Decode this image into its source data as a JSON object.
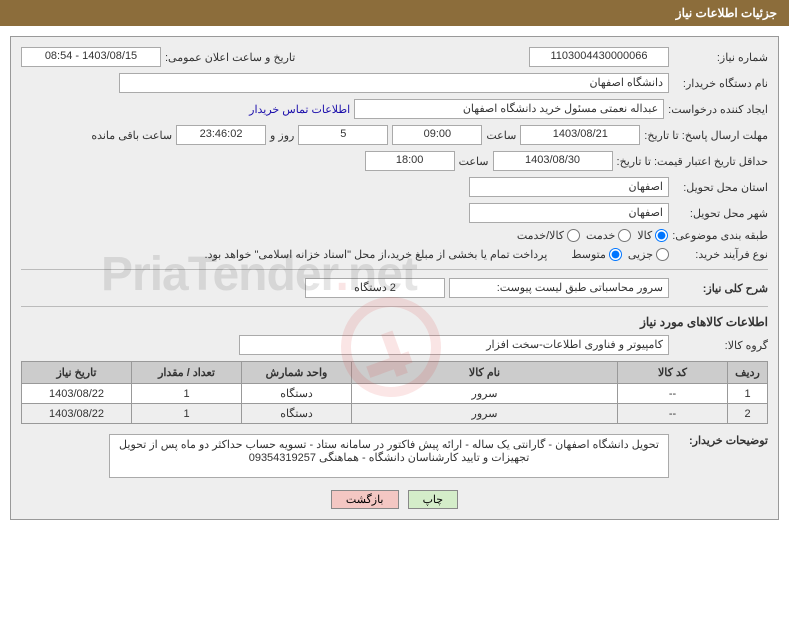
{
  "header": {
    "title": "جزئیات اطلاعات نیاز"
  },
  "fields": {
    "need_number_label": "شماره نیاز:",
    "need_number": "1103004430000066",
    "announce_label": "تاریخ و ساعت اعلان عمومی:",
    "announce_value": "1403/08/15 - 08:54",
    "buyer_org_label": "نام دستگاه خریدار:",
    "buyer_org": "دانشگاه اصفهان",
    "requester_label": "ایجاد کننده درخواست:",
    "requester": "عبداله نعمتی مسئول خرید دانشگاه اصفهان",
    "buyer_contact_link": "اطلاعات تماس خریدار",
    "deadline_send_label": "مهلت ارسال پاسخ: تا تاریخ:",
    "deadline_send_date": "1403/08/21",
    "time_label": "ساعت",
    "deadline_send_time": "09:00",
    "days": "5",
    "days_and": "روز و",
    "countdown": "23:46:02",
    "remaining_label": "ساعت باقی مانده",
    "price_validity_label": "حداقل تاریخ اعتبار قیمت: تا تاریخ:",
    "price_validity_date": "1403/08/30",
    "price_validity_time": "18:00",
    "delivery_province_label": "استان محل تحویل:",
    "delivery_province": "اصفهان",
    "delivery_city_label": "شهر محل تحویل:",
    "delivery_city": "اصفهان",
    "category_topic_label": "طبقه بندی موضوعی:",
    "buy_process_label": "نوع فرآیند خرید:",
    "payment_note": "پرداخت تمام یا بخشی از مبلغ خرید،از محل \"اسناد خزانه اسلامی\" خواهد بود.",
    "overall_desc_label": "شرح کلی نیاز:",
    "overall_desc": "سرور محاسباتی طبق لیست پیوست:",
    "qty_label_value": "2 دستگاه",
    "goods_info_title": "اطلاعات کالاهای مورد نیاز",
    "goods_group_label": "گروه کالا:",
    "goods_group": "کامپیوتر و فناوری اطلاعات-سخت افزار",
    "buyer_notes_label": "توضیحات خریدار:",
    "buyer_notes": "تحویل دانشگاه اصفهان - گارانتی یک ساله - ارائه پیش فاکتور در سامانه ستاد - تسویه حساب حداکثر دو ماه پس از تحویل تجهیزات و تایید کارشناسان دانشگاه - هماهنگی 09354319257"
  },
  "radios": {
    "topic": {
      "options": [
        "کالا",
        "خدمت",
        "کالا/خدمت"
      ],
      "selected": 0
    },
    "process": {
      "options": [
        "جزیی",
        "متوسط"
      ],
      "selected": 1
    }
  },
  "table": {
    "headers": [
      "ردیف",
      "کد کالا",
      "نام کالا",
      "واحد شمارش",
      "تعداد / مقدار",
      "تاریخ نیاز"
    ],
    "rows": [
      [
        "1",
        "--",
        "سرور",
        "دستگاه",
        "1",
        "1403/08/22"
      ],
      [
        "2",
        "--",
        "سرور",
        "دستگاه",
        "1",
        "1403/08/22"
      ]
    ],
    "col_widths": [
      "40px",
      "110px",
      "auto",
      "110px",
      "110px",
      "110px"
    ]
  },
  "buttons": {
    "print": "چاپ",
    "back": "بازگشت"
  },
  "watermark": {
    "text1": "PriaTender",
    "text2": "net"
  }
}
